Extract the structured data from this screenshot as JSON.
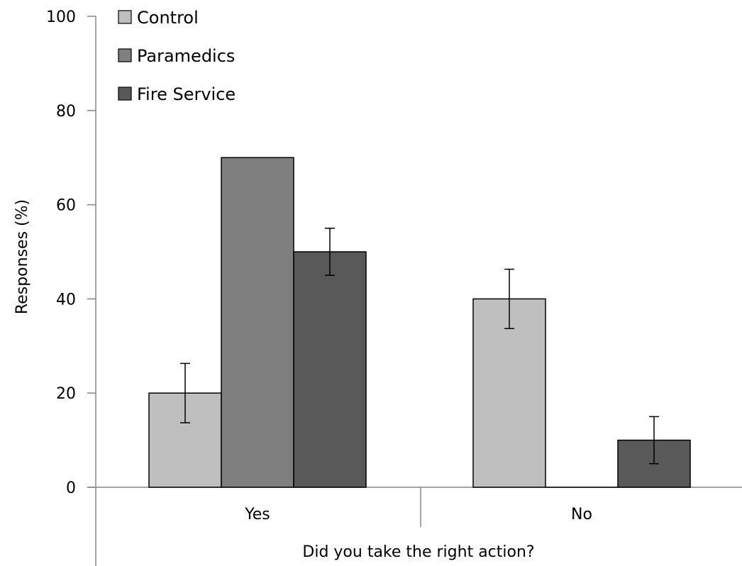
{
  "chart_data": {
    "type": "bar",
    "title": "",
    "xlabel": "Did you take the right action?",
    "ylabel": "Responses (%)",
    "ylim": [
      0,
      100
    ],
    "yticks": [
      "0",
      "20",
      "40",
      "60",
      "80",
      "100"
    ],
    "categories": [
      "Yes",
      "No"
    ],
    "series": [
      {
        "name": "Control",
        "color": "#bfbfbf",
        "values": [
          20,
          40
        ],
        "errors": [
          6.3,
          6.3
        ]
      },
      {
        "name": "Paramedics",
        "color": "#7f7f7f",
        "values": [
          70,
          0
        ],
        "errors": [
          0,
          0
        ]
      },
      {
        "name": "Fire Service",
        "color": "#595959",
        "values": [
          50,
          10
        ],
        "errors": [
          5,
          5
        ]
      }
    ],
    "grid": false,
    "legend_position": "top-left"
  }
}
